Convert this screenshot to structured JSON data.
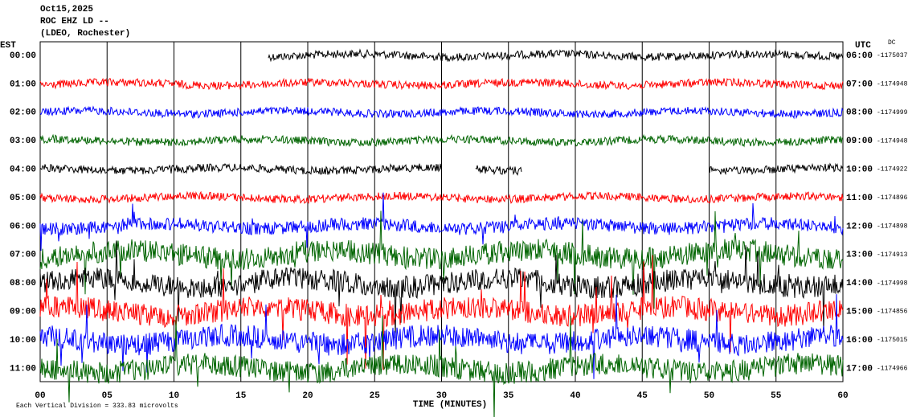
{
  "header": {
    "date": "Oct15,2025",
    "station": "ROC EHZ LD --",
    "network": "(LDEO, Rochester)"
  },
  "left_axis": {
    "title": "EST",
    "labels": [
      "00:00",
      "01:00",
      "02:00",
      "03:00",
      "04:00",
      "05:00",
      "06:00",
      "07:00",
      "08:00",
      "09:00",
      "10:00",
      "11:00"
    ]
  },
  "right_axis": {
    "title": "UTC",
    "dc_title": "DC",
    "labels": [
      "06:00",
      "07:00",
      "08:00",
      "09:00",
      "10:00",
      "11:00",
      "12:00",
      "13:00",
      "14:00",
      "15:00",
      "16:00",
      "17:00"
    ],
    "dc": [
      "-1175037",
      "-1174948",
      "-1174999",
      "-1174948",
      "-1174922",
      "-1174896",
      "-1174898",
      "-1174913",
      "-1174998",
      "-1174856",
      "-1175015",
      "-1174966"
    ]
  },
  "x_axis": {
    "title": "TIME (MINUTES)",
    "ticks": [
      "00",
      "05",
      "10",
      "15",
      "20",
      "25",
      "30",
      "35",
      "40",
      "45",
      "50",
      "55",
      "60"
    ]
  },
  "footer": "Each Vertical Division = 333.83 microvolts"
}
